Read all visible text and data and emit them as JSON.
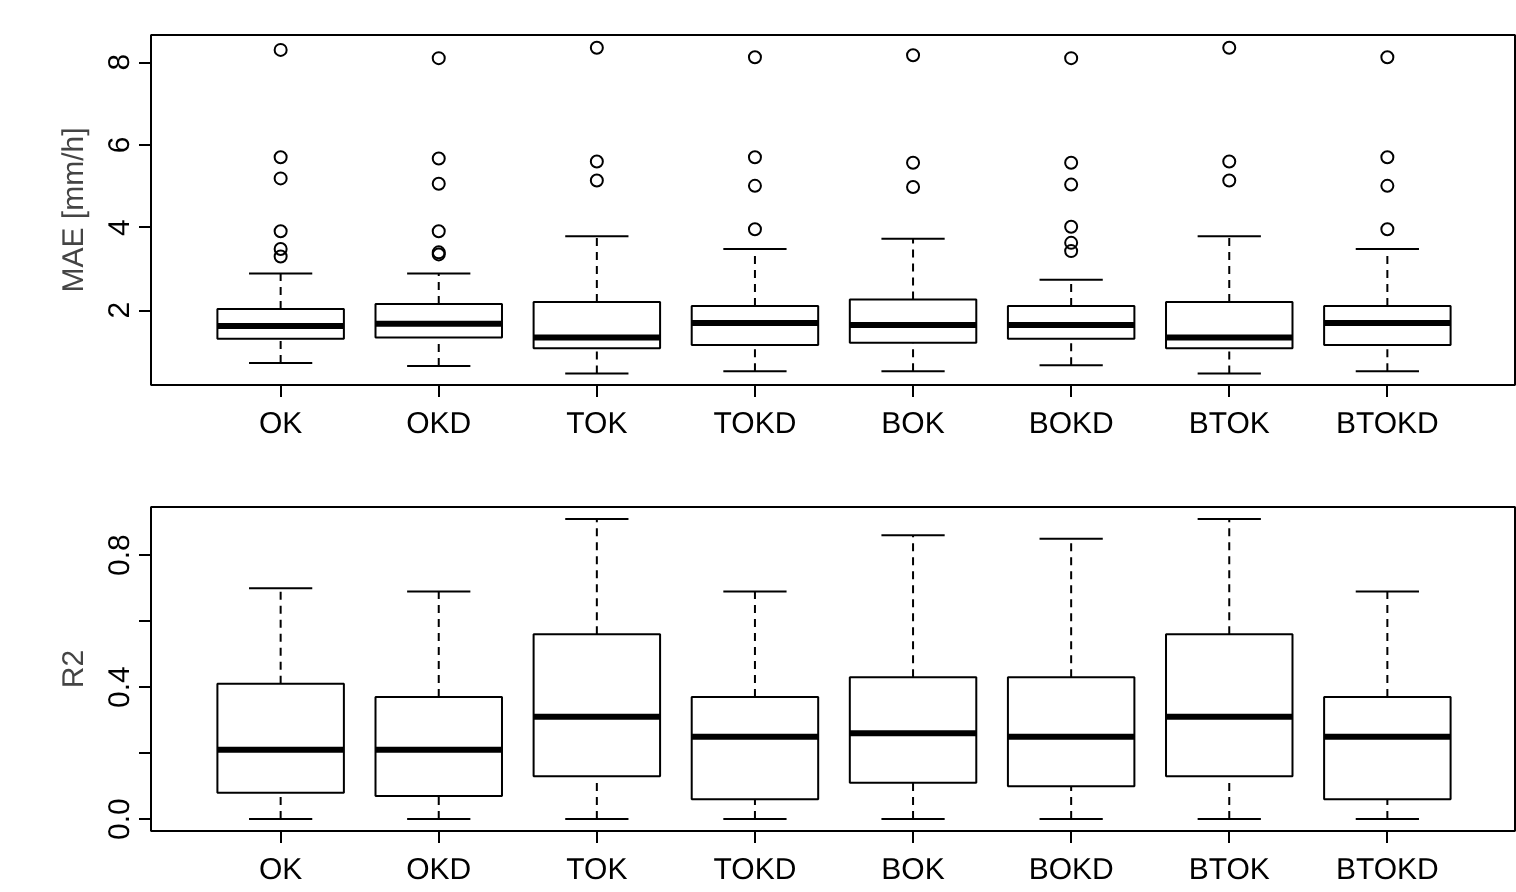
{
  "chart_data": [
    {
      "type": "box",
      "ylabel": "MAE [mm/h]",
      "categories": [
        "OK",
        "OKD",
        "TOK",
        "TOKD",
        "BOK",
        "BOKD",
        "BTOK",
        "BTOKD"
      ],
      "ylim": [
        0.19,
        8.66
      ],
      "yticks": [
        2,
        4,
        6,
        8
      ],
      "grid": false,
      "color": "#ffffff",
      "boxes": [
        {
          "low": 0.72,
          "q1": 1.31,
          "median": 1.62,
          "q3": 2.03,
          "high": 2.89,
          "outliers": [
            8.3,
            5.7,
            5.19,
            3.91,
            3.48,
            3.3
          ]
        },
        {
          "low": 0.65,
          "q1": 1.34,
          "median": 1.67,
          "q3": 2.15,
          "high": 2.89,
          "outliers": [
            8.1,
            5.67,
            5.06,
            3.91,
            3.4,
            3.35
          ]
        },
        {
          "low": 0.47,
          "q1": 1.08,
          "median": 1.34,
          "q3": 2.2,
          "high": 3.79,
          "outliers": [
            8.35,
            5.6,
            5.14
          ]
        },
        {
          "low": 0.52,
          "q1": 1.16,
          "median": 1.69,
          "q3": 2.1,
          "high": 3.48,
          "outliers": [
            8.12,
            5.7,
            5.01,
            3.96
          ]
        },
        {
          "low": 0.52,
          "q1": 1.21,
          "median": 1.64,
          "q3": 2.26,
          "high": 3.73,
          "outliers": [
            8.17,
            5.57,
            4.98
          ]
        },
        {
          "low": 0.67,
          "q1": 1.31,
          "median": 1.64,
          "q3": 2.1,
          "high": 2.74,
          "outliers": [
            8.1,
            5.57,
            5.04,
            4.02,
            3.63,
            3.43
          ]
        },
        {
          "low": 0.47,
          "q1": 1.08,
          "median": 1.34,
          "q3": 2.2,
          "high": 3.79,
          "outliers": [
            8.35,
            5.6,
            5.14
          ]
        },
        {
          "low": 0.52,
          "q1": 1.16,
          "median": 1.69,
          "q3": 2.1,
          "high": 3.48,
          "outliers": [
            8.12,
            5.7,
            5.01,
            3.96
          ]
        }
      ]
    },
    {
      "type": "box",
      "ylabel": "R2",
      "categories": [
        "OK",
        "OKD",
        "TOK",
        "TOKD",
        "BOK",
        "BOKD",
        "BTOK",
        "BTOKD"
      ],
      "ylim": [
        -0.036,
        0.946
      ],
      "yticks": [
        {
          "value": 0.0,
          "label": "0.0"
        },
        {
          "value": 0.2,
          "label": null
        },
        0.4,
        {
          "value": 0.6,
          "label": null
        },
        0.8
      ],
      "grid": false,
      "color": "#ffffff",
      "boxes": [
        {
          "low": 0.0,
          "q1": 0.08,
          "median": 0.21,
          "q3": 0.41,
          "high": 0.7
        },
        {
          "low": 0.0,
          "q1": 0.07,
          "median": 0.21,
          "q3": 0.37,
          "high": 0.69
        },
        {
          "low": 0.0,
          "q1": 0.13,
          "median": 0.31,
          "q3": 0.56,
          "high": 0.91
        },
        {
          "low": 0.0,
          "q1": 0.06,
          "median": 0.25,
          "q3": 0.37,
          "high": 0.69
        },
        {
          "low": 0.0,
          "q1": 0.11,
          "median": 0.26,
          "q3": 0.43,
          "high": 0.86
        },
        {
          "low": 0.0,
          "q1": 0.1,
          "median": 0.25,
          "q3": 0.43,
          "high": 0.85
        },
        {
          "low": 0.0,
          "q1": 0.13,
          "median": 0.31,
          "q3": 0.56,
          "high": 0.91
        },
        {
          "low": 0.0,
          "q1": 0.06,
          "median": 0.25,
          "q3": 0.37,
          "high": 0.69
        }
      ]
    }
  ]
}
